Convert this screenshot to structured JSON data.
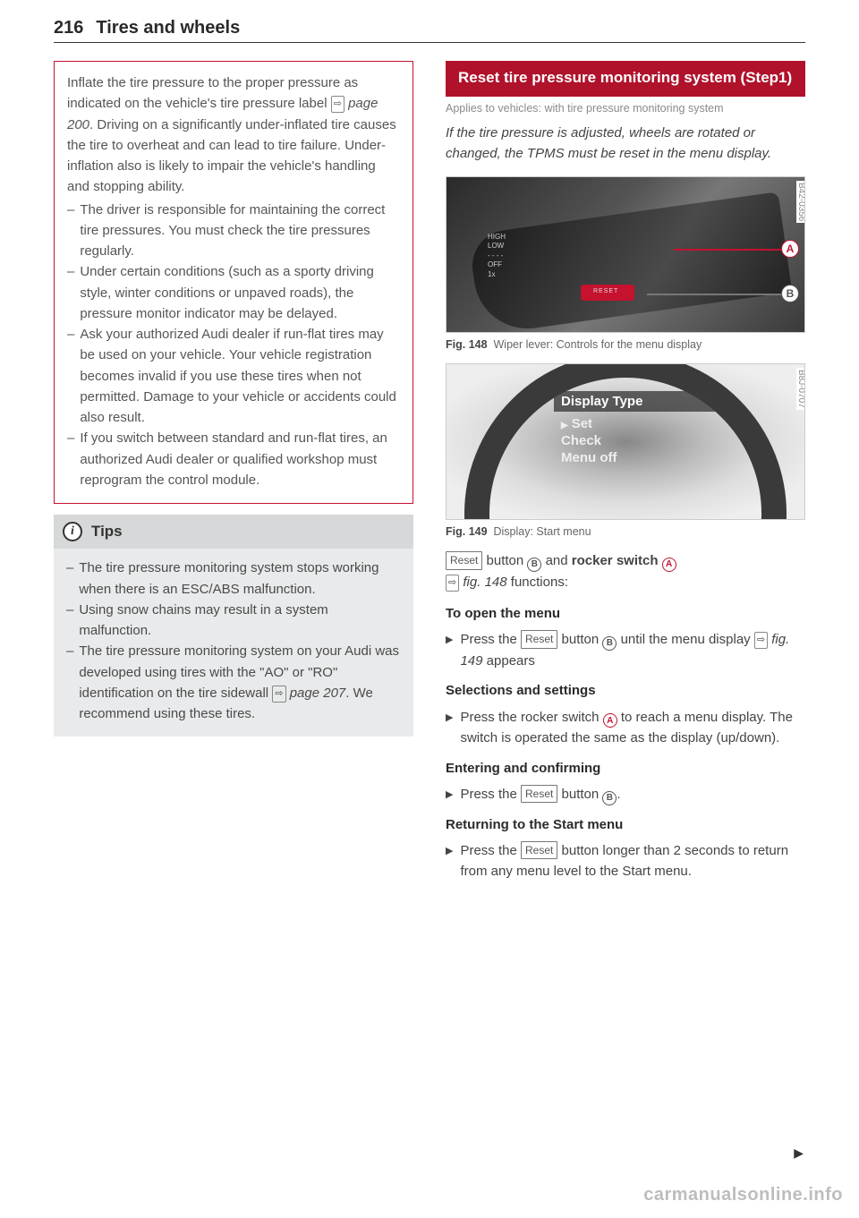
{
  "page_number": "216",
  "page_title": "Tires and wheels",
  "warning": {
    "intro": "Inflate the tire pressure to the proper pressure as indicated on the vehicle's tire pressure label ",
    "intro_page_ref": "page 200",
    "intro_cont": ". Driving on a significantly under-inflated tire causes the tire to overheat and can lead to tire failure. Under-inflation also is likely to impair the vehicle's handling and stopping ability.",
    "items": [
      "The driver is responsible for maintaining the correct tire pressures. You must check the tire pressures regularly.",
      "Under certain conditions (such as a sporty driving style, winter conditions or unpaved roads), the pressure monitor indicator may be delayed.",
      "Ask your authorized Audi dealer if run-flat tires may be used on your vehicle. Your vehicle registration becomes invalid if you use these tires when not permitted. Damage to your vehicle or accidents could also result.",
      "If you switch between standard and run-flat tires, an authorized Audi dealer or qualified workshop must reprogram the control module."
    ]
  },
  "tips": {
    "heading": "Tips",
    "items": [
      "The tire pressure monitoring system stops working when there is an ESC/ABS malfunction.",
      "Using snow chains may result in a system malfunction."
    ],
    "last_item_pre": "The tire pressure monitoring system on your Audi was developed using tires with the \"AO\" or \"RO\" identification on the tire sidewall ",
    "last_item_ref": "page 207",
    "last_item_post": ". We recommend using these tires."
  },
  "section": {
    "title": "Reset tire pressure monitoring system (Step1)",
    "applies": "Applies to vehicles: with tire pressure monitoring system",
    "intro": "If the tire pressure is adjusted, wheels are rotated or changed, the TPMS must be reset in the menu display."
  },
  "fig148": {
    "label": "Fig. 148",
    "caption": "Wiper lever: Controls for the menu display",
    "code": "B42-0356",
    "lever_labels": [
      "HIGH",
      "LOW",
      "- - - -",
      "OFF",
      "1x"
    ],
    "callout_a": "A",
    "callout_b": "B"
  },
  "fig149": {
    "label": "Fig. 149",
    "caption": "Display: Start menu",
    "code": "B8J-0707",
    "menu_header": "Display Type",
    "menu_items": [
      "Set",
      "Check",
      "Menu off"
    ]
  },
  "controls": {
    "reset_label": "Reset",
    "intro_pre": " button ",
    "intro_mid": " and ",
    "rocker": "rocker switch",
    "fig_ref": "fig. 148",
    "intro_post": " functions:",
    "h_open": "To open the menu",
    "open_step_pre": "Press the ",
    "open_step_mid": " button ",
    "open_step_post": " until the menu display ",
    "open_step_fig": "fig. 149",
    "open_step_end": " appears",
    "h_sel": "Selections and settings",
    "sel_step_pre": "Press the rocker switch ",
    "sel_step_post": " to reach a menu display. The switch is operated the same as the display (up/down).",
    "h_enter": "Entering and confirming",
    "enter_step_pre": "Press the ",
    "enter_step_mid": " button ",
    "enter_step_post": ".",
    "h_return": "Returning to the Start menu",
    "return_step_pre": "Press the ",
    "return_step_mid": " button longer than 2 seconds to return from any menu level to the Start menu."
  },
  "watermark": "carmanualsonline.info",
  "colors": {
    "accent_red": "#b0122b",
    "warn_border": "#c4122f",
    "text": "#3a3a3a",
    "muted": "#8a8a8a"
  }
}
